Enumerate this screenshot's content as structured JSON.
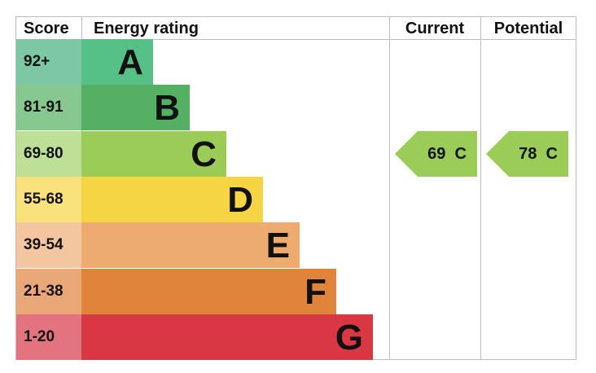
{
  "chart_data": {
    "type": "table",
    "headers": {
      "score": "Score",
      "rating": "Energy rating",
      "current": "Current",
      "potential": "Potential"
    },
    "bands": [
      {
        "letter": "A",
        "range": "92+",
        "color": "#55c186",
        "score_color": "#7ec7a4"
      },
      {
        "letter": "B",
        "range": "81-91",
        "color": "#55b064",
        "score_color": "#87c790"
      },
      {
        "letter": "C",
        "range": "69-80",
        "color": "#9ccc58",
        "score_color": "#bee096"
      },
      {
        "letter": "D",
        "range": "55-68",
        "color": "#f6d545",
        "score_color": "#f9e27c"
      },
      {
        "letter": "E",
        "range": "39-54",
        "color": "#eeab70",
        "score_color": "#f3c6a0"
      },
      {
        "letter": "F",
        "range": "21-38",
        "color": "#e0843b",
        "score_color": "#eaa878"
      },
      {
        "letter": "G",
        "range": "1-20",
        "color": "#d93743",
        "score_color": "#e2737f"
      }
    ],
    "current": {
      "value": 69,
      "letter": "C",
      "label": "69  C",
      "color": "#9ccc58"
    },
    "potential": {
      "value": 78,
      "letter": "C",
      "label": "78  C",
      "color": "#9ccc58"
    }
  }
}
